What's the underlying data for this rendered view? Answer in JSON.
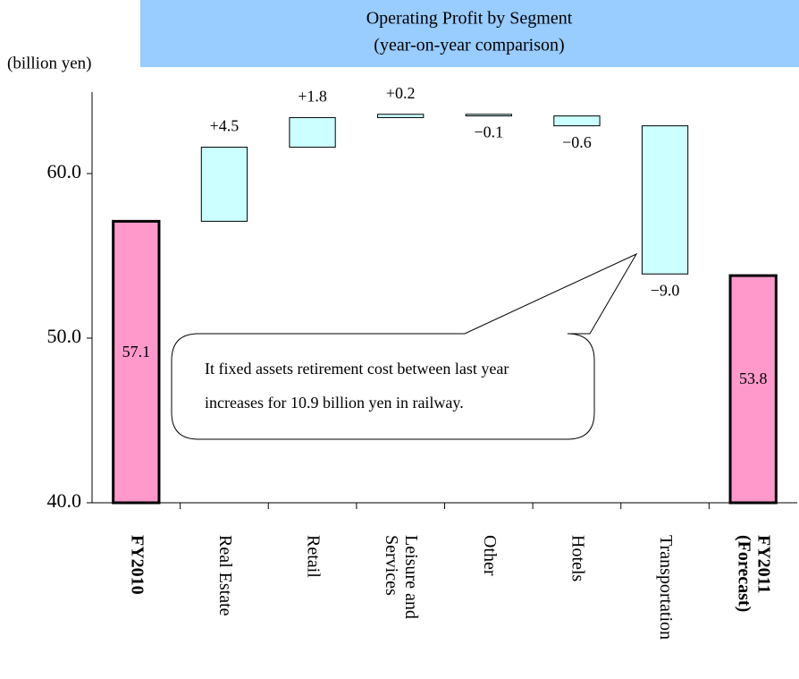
{
  "chart_data": {
    "type": "waterfall",
    "title": "Operating Profit by Segment",
    "subtitle": "(year-on-year comparison)",
    "y_label": "(billion yen)",
    "annotation": [
      "It fixed assets retirement cost between last year",
      "increases for 10.9 billion yen in railway."
    ],
    "categories": [
      "FY2010",
      "Real Estate",
      "Retail",
      "Leisure and Services",
      "Other",
      "Hotels",
      "Transportation",
      "FY2011 (Forecast)"
    ],
    "values": [
      57.1,
      4.5,
      1.8,
      0.2,
      -0.1,
      -0.6,
      -9.0,
      53.8
    ],
    "value_labels": [
      "57.1",
      "+4.5",
      "+1.8",
      "+0.2",
      "−0.1",
      "−0.6",
      "−9.0",
      "53.8"
    ],
    "totals": [
      0,
      7
    ],
    "total_color": "#ff99cc",
    "change_color": "#ccffff",
    "ylim": [
      40,
      65
    ],
    "yticks": [
      {
        "value": 40,
        "label": "40.0"
      },
      {
        "value": 50,
        "label": "50.0"
      },
      {
        "value": 60,
        "label": "60.0"
      }
    ],
    "grid": false
  }
}
